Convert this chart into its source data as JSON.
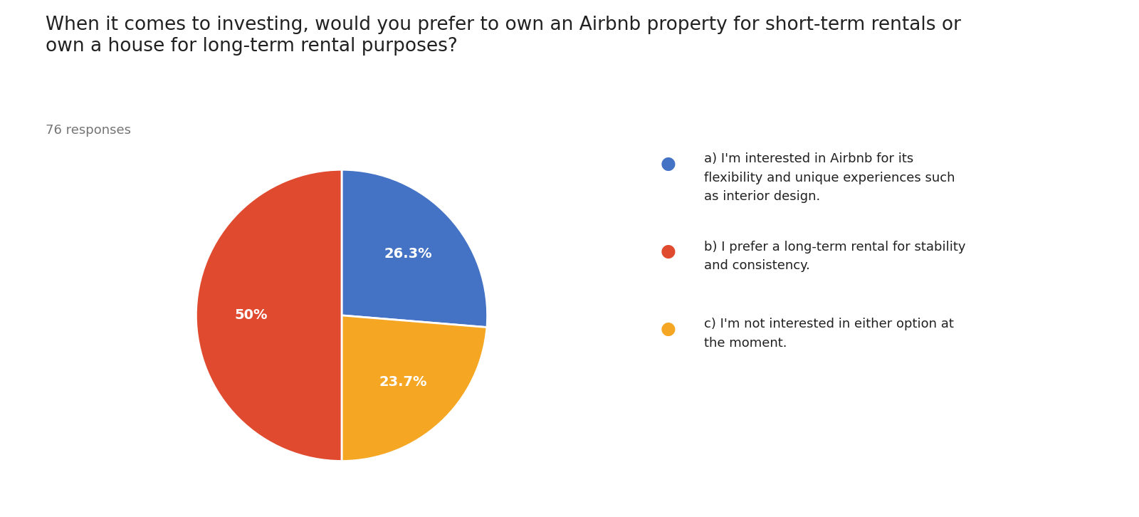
{
  "title": "When it comes to investing, would you prefer to own an Airbnb property for short-term rentals or\nown a house for long-term rental purposes?",
  "subtitle": "76 responses",
  "slices": [
    26.3,
    23.7,
    50.0
  ],
  "colors": [
    "#4472C4",
    "#F5A623",
    "#E04A2F"
  ],
  "labels": [
    "26.3%",
    "23.7%",
    "50%"
  ],
  "legend_labels": [
    "a) I'm interested in Airbnb for its\nflexibility and unique experiences such\nas interior design.",
    "b) I prefer a long-term rental for stability\nand consistency.",
    "c) I'm not interested in either option at\nthe moment."
  ],
  "legend_colors": [
    "#4472C4",
    "#E04A2F",
    "#F5A623"
  ],
  "background_color": "#ffffff",
  "title_fontsize": 19,
  "subtitle_fontsize": 13,
  "label_fontsize": 14,
  "legend_fontsize": 13,
  "startangle": -90
}
